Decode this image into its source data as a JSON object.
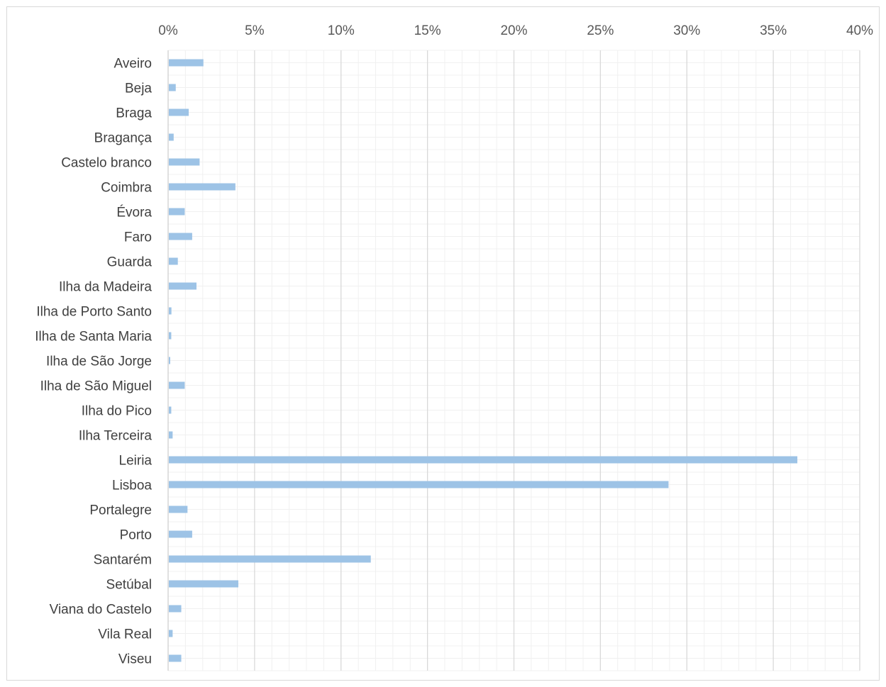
{
  "chart_data": {
    "type": "bar",
    "orientation": "horizontal",
    "x_axis_position": "top",
    "x_tick_labels": [
      "0%",
      "5%",
      "10%",
      "15%",
      "20%",
      "25%",
      "30%",
      "35%",
      "40%"
    ],
    "xlim": [
      0,
      0.4
    ],
    "grid": true,
    "legend": "none",
    "bar_color": "#9dc3e6",
    "gridline_color": "#d9d9d9",
    "minor_gridline_color": "#f0f0f0",
    "categories": [
      "Aveiro",
      "Beja",
      "Braga",
      "Bragança",
      "Castelo branco",
      "Coimbra",
      "Évora",
      "Faro",
      "Guarda",
      "Ilha da Madeira",
      "Ilha de Porto Santo",
      "Ilha de Santa Maria",
      "Ilha de São Jorge",
      "Ilha de São Miguel",
      "Ilha do Pico",
      "Ilha Terceira",
      "Leiria",
      "Lisboa",
      "Portalegre",
      "Porto",
      "Santarém",
      "Setúbal",
      "Viana do Castelo",
      "Vila Real",
      "Viseu"
    ],
    "values": [
      0.02,
      0.004,
      0.0115,
      0.0028,
      0.0178,
      0.0385,
      0.0092,
      0.0135,
      0.0052,
      0.016,
      0.0015,
      0.0014,
      0.0008,
      0.0092,
      0.0014,
      0.0022,
      0.3635,
      0.289,
      0.0108,
      0.0135,
      0.1168,
      0.0402,
      0.0072,
      0.0022,
      0.0072
    ]
  }
}
